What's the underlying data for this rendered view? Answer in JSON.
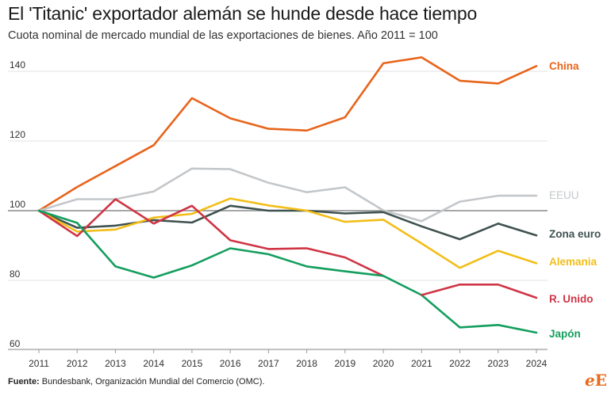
{
  "title": "El 'Titanic' exportador alemán se hunde desde hace tiempo",
  "subtitle": "Cuota nominal de mercado mundial de las exportaciones de bienes. Año 2011 = 100",
  "source": {
    "label": "Fuente:",
    "text": " Bundesbank, Organización Mundial del Comercio (OMC)."
  },
  "logo": {
    "first": "e",
    "second": "E"
  },
  "chart_data": {
    "type": "line",
    "x": [
      2011,
      2012,
      2013,
      2014,
      2015,
      2016,
      2017,
      2018,
      2019,
      2020,
      2021,
      2022,
      2023,
      2024
    ],
    "ylim": [
      60,
      145
    ],
    "yticks": [
      60,
      80,
      100,
      120,
      140
    ],
    "reference_line": 100,
    "grid": "horizontal",
    "legend": "direct labels at right end of lines",
    "series": [
      {
        "name": "China",
        "color": "#e8641b",
        "values": [
          100,
          106.8,
          112.8,
          118.8,
          132.3,
          126.5,
          123.5,
          123,
          126.8,
          142.3,
          144,
          137.3,
          136.5,
          141.5
        ]
      },
      {
        "name": "EEUU",
        "color": "#c4c7ca",
        "values": [
          100,
          103.3,
          103.3,
          105.5,
          112.1,
          111.9,
          108,
          105.3,
          106.7,
          100.1,
          97,
          102.6,
          104.3,
          104.3
        ]
      },
      {
        "name": "Zona euro",
        "color": "#3f5250",
        "values": [
          100,
          95.1,
          95.7,
          97.3,
          96.6,
          101.4,
          100,
          100,
          99.2,
          99.6,
          95.5,
          91.8,
          96.3,
          92.9
        ]
      },
      {
        "name": "Alemania",
        "color": "#f2be18",
        "values": [
          100,
          94,
          94.6,
          98,
          99.1,
          103.5,
          101.5,
          100,
          96.8,
          97.4,
          90.6,
          83.6,
          88.5,
          84.9
        ]
      },
      {
        "name": "R. Unido",
        "color": "#cf3545",
        "values": [
          100,
          92.7,
          103.3,
          96.3,
          101.4,
          91.5,
          89,
          89.2,
          86.6,
          81.3,
          null,
          78.8,
          78.8,
          75
        ]
      },
      {
        "name": "Japón",
        "color": "#149e5e",
        "values": [
          100,
          96.5,
          84,
          80.8,
          84.3,
          89.2,
          87.5,
          84,
          82.6,
          81.3,
          75.8,
          66.5,
          67.2,
          65
        ]
      }
    ],
    "r_unido_segment_2021": [
      75.8,
      78.8
    ]
  }
}
